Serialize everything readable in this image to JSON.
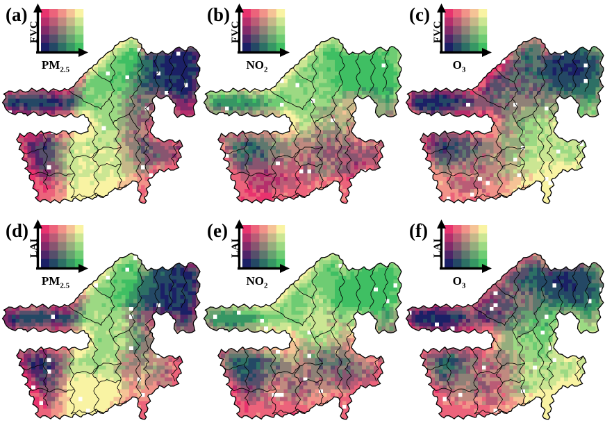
{
  "figure": {
    "type": "bivariate-choropleth-grid",
    "background": "#ffffff",
    "rows": 2,
    "cols": 3,
    "legend_levels": 5,
    "palette_corners": {
      "top_left": "#E8336E",
      "top_right": "#F9F3A3",
      "bottom_left": "#1B2066",
      "bottom_right": "#3FBF63"
    },
    "boundary_color": "#000000",
    "nodata_color": "#ffffff"
  },
  "panels": [
    {
      "label": "(a)",
      "y_label": "FVC",
      "x_label_base": "PM",
      "x_label_sub": "2.5",
      "pattern": "pm",
      "seed": 11
    },
    {
      "label": "(b)",
      "y_label": "FVC",
      "x_label_base": "NO",
      "x_label_sub": "2",
      "pattern": "no2",
      "seed": 23
    },
    {
      "label": "(c)",
      "y_label": "FVC",
      "x_label_base": "O",
      "x_label_sub": "3",
      "pattern": "o3",
      "seed": 37
    },
    {
      "label": "(d)",
      "y_label": "LAI",
      "x_label_base": "PM",
      "x_label_sub": "2.5",
      "pattern": "pm",
      "seed": 53
    },
    {
      "label": "(e)",
      "y_label": "LAI",
      "x_label_base": "NO",
      "x_label_sub": "2",
      "pattern": "no2",
      "seed": 67
    },
    {
      "label": "(f)",
      "y_label": "LAI",
      "x_label_base": "O",
      "x_label_sub": "3",
      "pattern": "o3",
      "seed": 79
    }
  ]
}
